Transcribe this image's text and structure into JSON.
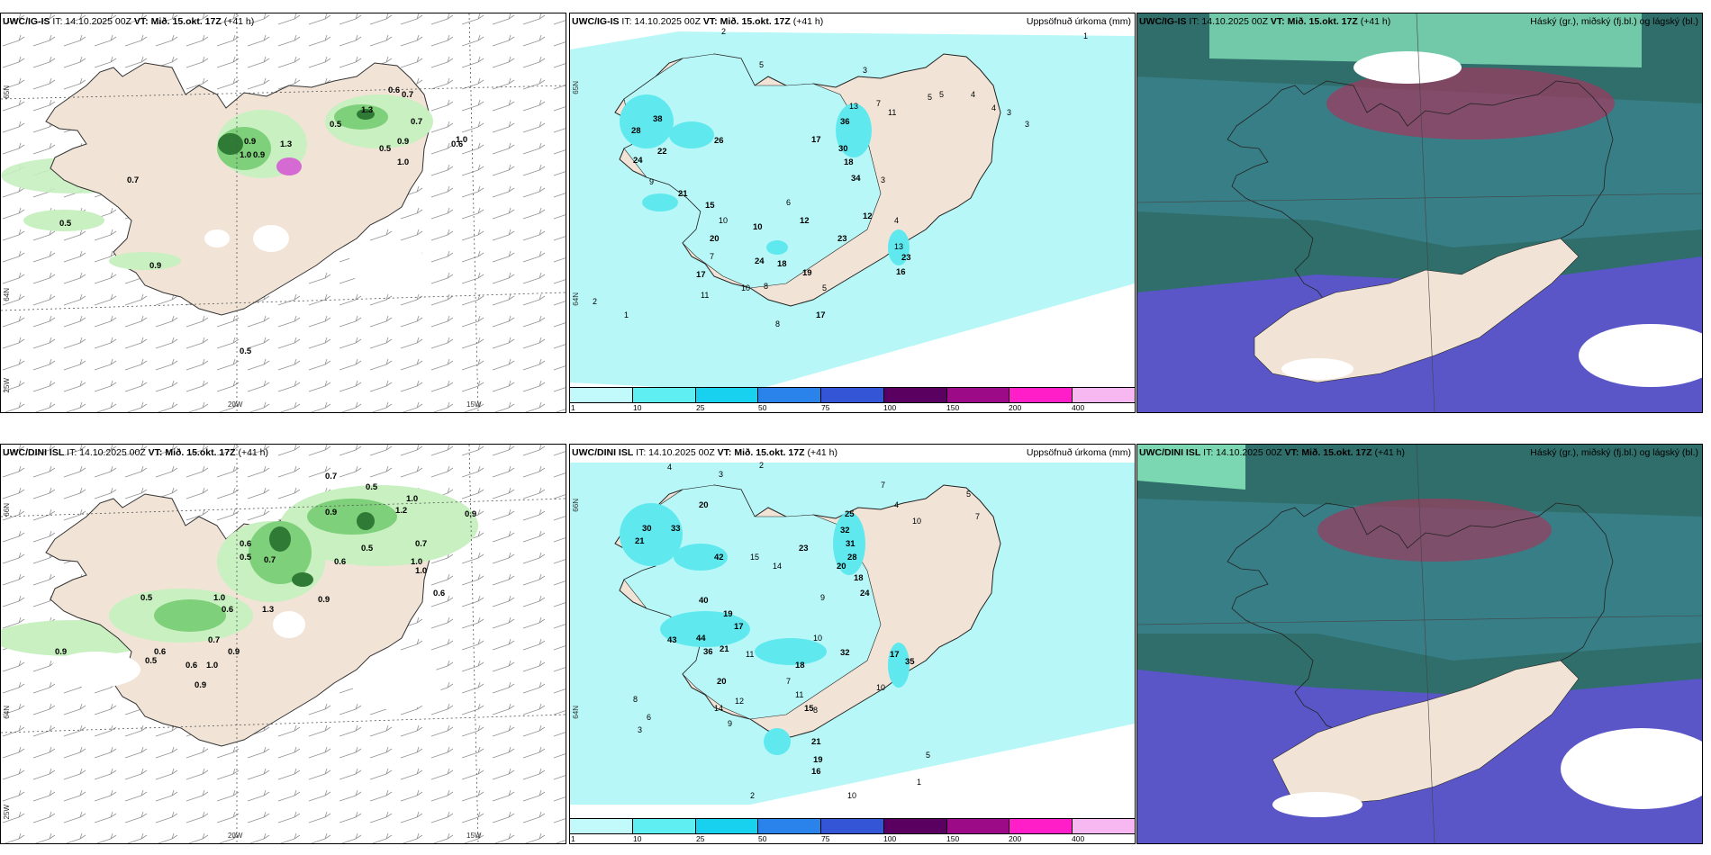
{
  "colors": {
    "land": "#f1e4d6",
    "precip_light": "#c8f0c0",
    "precip_mid": "#7fd07a",
    "precip_dark": "#2f7a34",
    "accum_light": "#b8f7f7",
    "accum_mid": "#5fe9ef",
    "cloud_high": "#3a7f8a",
    "cloud_mid": "#2f6e6a",
    "cloud_low": "#5a56c8",
    "cloud_red": "#9b3c60"
  },
  "panels": {
    "top_left": {
      "model": "UWC/IG-IS",
      "it": "IT: 14.10.2025 00Z",
      "vt_label": "VT: Mið. 15.okt. 17Z",
      "lead": "(+41 h)",
      "axis": {
        "lat_top": "65N",
        "lat_bottom": "64N",
        "lon_left": "25W",
        "lon_mid": "20W",
        "lon_right": "15W"
      },
      "labels": [
        "0.6",
        "0.7",
        "0.7",
        "0.5",
        "0.9",
        "0.9",
        "1.0",
        "0.9",
        "0.6",
        "0.7",
        "0.5",
        "0.9",
        "0.5",
        "0.5",
        "1.3",
        "1.3",
        "1.0",
        "1.0"
      ]
    },
    "top_mid": {
      "model": "UWC/IG-IS",
      "it": "IT: 14.10.2025 00Z",
      "vt_label": "VT: Mið. 15.okt. 17Z",
      "lead": "(+41 h)",
      "right_title": "Uppsöfnuð úrkoma (mm)",
      "axis": {
        "lat_top": "65N",
        "lat_bottom": "64N"
      },
      "labels": [
        "2",
        "1",
        "5",
        "3",
        "4",
        "5",
        "3",
        "36",
        "26",
        "28",
        "38",
        "22",
        "24",
        "9",
        "17",
        "30",
        "18",
        "34",
        "13",
        "11",
        "7",
        "5",
        "4",
        "3",
        "21",
        "15",
        "10",
        "12",
        "6",
        "23",
        "20",
        "24",
        "18",
        "19",
        "17",
        "13",
        "23",
        "16",
        "11",
        "8",
        "10",
        "7",
        "5",
        "4",
        "3",
        "2",
        "1",
        "10",
        "12",
        "17",
        "8"
      ]
    },
    "top_right": {
      "model": "UWC/IG-IS",
      "it": "IT: 14.10.2025 00Z",
      "vt_label": "VT: Mið. 15.okt. 17Z",
      "lead": "(+41 h)",
      "right_title": "Háský (gr.), miðský (fj.bl.) og lágský (bl.)"
    },
    "bottom_left": {
      "model": "UWC/DINI ISL",
      "it": "IT: 14.10.2025 00Z",
      "vt_label": "VT: Mið. 15.okt. 17Z",
      "lead": "(+41 h)",
      "axis": {
        "lat_top": "66N",
        "lat_bottom": "64N",
        "lon_left": "25W",
        "lon_mid": "20W",
        "lon_right": "15W"
      },
      "labels": [
        "0.7",
        "0.5",
        "1.0",
        "0.9",
        "1.2",
        "0.9",
        "0.5",
        "0.7",
        "1.0",
        "0.6",
        "0.5",
        "0.6",
        "0.7",
        "1.0",
        "0.9",
        "0.6",
        "0.5",
        "1.0",
        "0.9",
        "1.3",
        "0.6",
        "0.6",
        "0.7",
        "0.9",
        "1.0",
        "0.5",
        "0.6",
        "0.9"
      ]
    },
    "bottom_mid": {
      "model": "UWC/DINI ISL",
      "it": "IT: 14.10.2025 00Z",
      "vt_label": "VT: Mið. 15.okt. 17Z",
      "lead": "(+41 h)",
      "right_title": "Uppsöfnuð úrkoma (mm)",
      "axis": {
        "lat_top": "66N",
        "lat_bottom": "64N"
      },
      "labels": [
        "4",
        "3",
        "2",
        "7",
        "4",
        "5",
        "10",
        "7",
        "20",
        "33",
        "30",
        "21",
        "25",
        "42",
        "14",
        "15",
        "23",
        "32",
        "31",
        "28",
        "20",
        "18",
        "24",
        "9",
        "40",
        "19",
        "17",
        "44",
        "43",
        "36",
        "21",
        "11",
        "10",
        "32",
        "35",
        "17",
        "20",
        "18",
        "14",
        "15",
        "11",
        "10",
        "7",
        "8",
        "6",
        "3",
        "2",
        "1",
        "21",
        "19",
        "16",
        "8",
        "10",
        "5",
        "9",
        "12"
      ]
    },
    "bottom_right": {
      "model": "UWC/DINI ISL",
      "it": "IT: 14.10.2025 00Z",
      "vt_label": "VT: Mið. 15.okt. 17Z",
      "lead": "(+41 h)",
      "right_title": "Háský (gr.), miðský (fj.bl.) og lágský (bl.)"
    }
  },
  "colorbar": {
    "ticks": [
      "1",
      "10",
      "25",
      "50",
      "75",
      "100",
      "150",
      "200",
      "400"
    ],
    "colors": [
      "#c2fafb",
      "#5feef2",
      "#17d1ee",
      "#2a83ea",
      "#3355d6",
      "#5a0060",
      "#9d0a87",
      "#ff1ec8",
      "#f7b8f2"
    ]
  }
}
